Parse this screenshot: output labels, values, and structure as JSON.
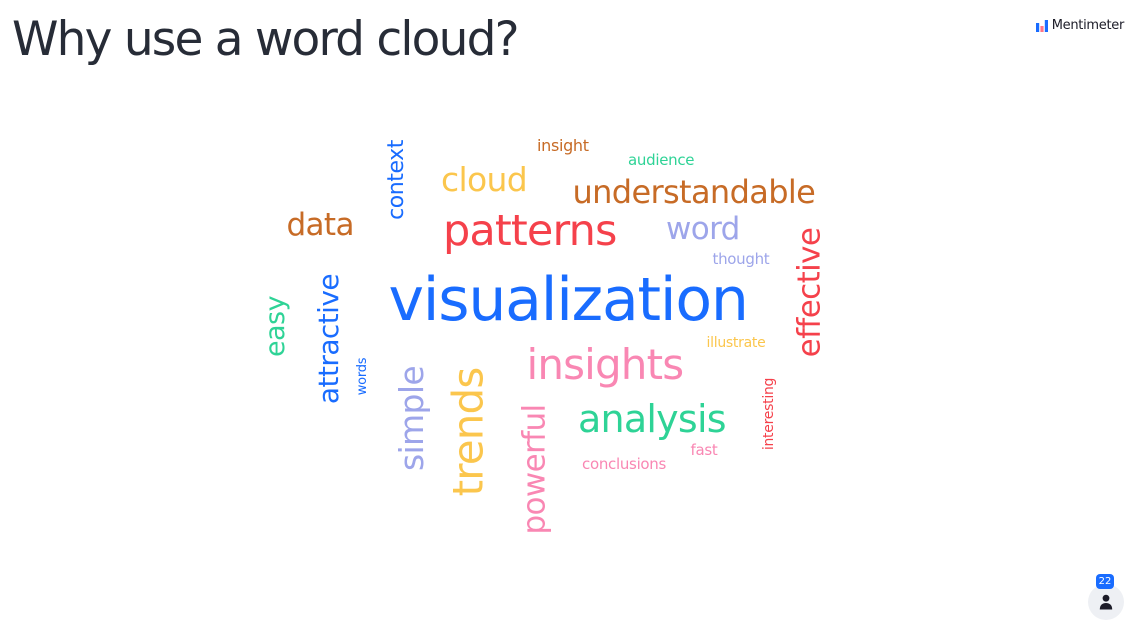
{
  "slide": {
    "title": "Why use a word cloud?"
  },
  "brand": {
    "name": "Mentimeter",
    "icon": "mentimeter-logo-icon",
    "logo_colors": [
      "#196cff",
      "#ff7486",
      "#196cff"
    ]
  },
  "participants": {
    "count": "22",
    "icon": "person-icon",
    "badge_color": "#196cff"
  },
  "word_cloud": {
    "words": [
      {
        "text": "visualization",
        "color": "#196cff",
        "orientation": "horizontal"
      },
      {
        "text": "patterns",
        "color": "#f5414b",
        "orientation": "horizontal"
      },
      {
        "text": "understandable",
        "color": "#c76b26",
        "orientation": "horizontal"
      },
      {
        "text": "cloud",
        "color": "#fbc64d",
        "orientation": "horizontal"
      },
      {
        "text": "word",
        "color": "#9da5ea",
        "orientation": "horizontal"
      },
      {
        "text": "data",
        "color": "#c76b26",
        "orientation": "horizontal"
      },
      {
        "text": "insight",
        "color": "#c76b26",
        "orientation": "horizontal"
      },
      {
        "text": "audience",
        "color": "#2ed396",
        "orientation": "horizontal"
      },
      {
        "text": "thought",
        "color": "#9da5ea",
        "orientation": "horizontal"
      },
      {
        "text": "illustrate",
        "color": "#fbc64d",
        "orientation": "horizontal"
      },
      {
        "text": "insights",
        "color": "#f987b3",
        "orientation": "horizontal"
      },
      {
        "text": "analysis",
        "color": "#2ed396",
        "orientation": "horizontal"
      },
      {
        "text": "fast",
        "color": "#f987b3",
        "orientation": "horizontal"
      },
      {
        "text": "conclusions",
        "color": "#f987b3",
        "orientation": "horizontal"
      },
      {
        "text": "context",
        "color": "#196cff",
        "orientation": "vertical"
      },
      {
        "text": "effective",
        "color": "#f5414b",
        "orientation": "vertical"
      },
      {
        "text": "easy",
        "color": "#2ed396",
        "orientation": "vertical"
      },
      {
        "text": "attractive",
        "color": "#196cff",
        "orientation": "vertical"
      },
      {
        "text": "words",
        "color": "#196cff",
        "orientation": "vertical"
      },
      {
        "text": "simple",
        "color": "#9da5ea",
        "orientation": "vertical"
      },
      {
        "text": "trends",
        "color": "#fbc64d",
        "orientation": "vertical"
      },
      {
        "text": "powerful",
        "color": "#f987b3",
        "orientation": "vertical"
      },
      {
        "text": "interesting",
        "color": "#f5414b",
        "orientation": "vertical"
      }
    ]
  }
}
